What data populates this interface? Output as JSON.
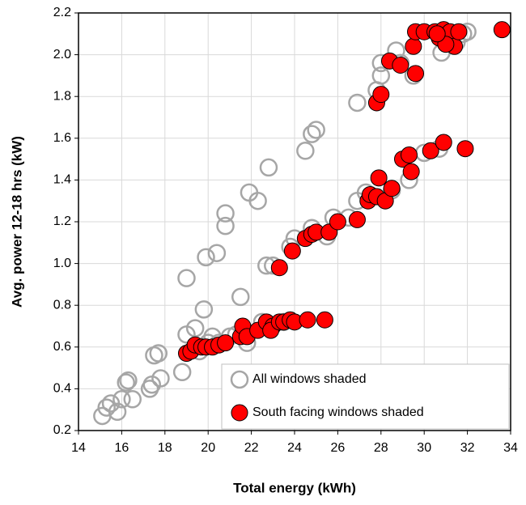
{
  "chart_data": {
    "type": "scatter",
    "xlabel": "Total energy (kWh)",
    "ylabel": "Avg. power  12-18 hrs (kW)",
    "xlim": [
      14,
      34
    ],
    "xticks": [
      14,
      16,
      18,
      20,
      22,
      24,
      26,
      28,
      30,
      32,
      34
    ],
    "ylim": [
      0.2,
      2.2
    ],
    "yticks": [
      0.2,
      0.4,
      0.6,
      0.8,
      {
        "value": 1,
        "label": "1.0"
      },
      1.2,
      1.4,
      1.6,
      1.8,
      {
        "value": 2,
        "label": "2.0"
      },
      2.2
    ],
    "grid": true,
    "legend": "lower right",
    "series": [
      {
        "name": "All windows shaded",
        "color": "#a6a6a6",
        "filled": false,
        "x": [
          15.1,
          15.3,
          15.5,
          15.8,
          16.0,
          16.2,
          16.3,
          16.5,
          17.3,
          17.4,
          17.5,
          17.7,
          17.8,
          18.8,
          19.0,
          19.0,
          19.4,
          19.6,
          19.8,
          19.9,
          20.0,
          20.2,
          20.4,
          20.8,
          20.8,
          20.5,
          21.0,
          21.3,
          21.5,
          21.8,
          21.9,
          22.3,
          22.5,
          22.8,
          22.7,
          23.0,
          23.5,
          23.8,
          24.0,
          24.5,
          24.8,
          25.0,
          24.8,
          25.5,
          25.8,
          26.5,
          26.9,
          26.9,
          27.3,
          27.8,
          28.0,
          28.0,
          28.5,
          28.7,
          28.9,
          29.3,
          29.5,
          30.0,
          30.8,
          31.5,
          31.8,
          32.0,
          30.7
        ],
        "values": [
          0.27,
          0.31,
          0.33,
          0.29,
          0.35,
          0.43,
          0.44,
          0.35,
          0.4,
          0.42,
          0.56,
          0.57,
          0.45,
          0.48,
          0.66,
          0.93,
          0.69,
          0.58,
          0.78,
          1.03,
          0.62,
          0.65,
          1.05,
          1.24,
          1.18,
          0.62,
          0.65,
          0.66,
          0.84,
          0.62,
          1.34,
          1.3,
          0.72,
          1.46,
          0.99,
          0.99,
          0.72,
          1.08,
          1.12,
          1.54,
          1.62,
          1.64,
          1.17,
          1.13,
          1.22,
          1.22,
          1.3,
          1.77,
          1.34,
          1.83,
          1.9,
          1.96,
          1.35,
          2.02,
          1.96,
          1.4,
          1.9,
          1.53,
          2.01,
          2.06,
          2.1,
          2.11,
          1.55
        ]
      },
      {
        "name": "South facing windows shaded",
        "color": "#ff0000",
        "filled": true,
        "x": [
          19.0,
          19.2,
          19.4,
          19.7,
          19.9,
          20.2,
          20.5,
          20.8,
          21.5,
          21.6,
          21.8,
          22.3,
          22.7,
          23.0,
          22.9,
          23.3,
          23.5,
          23.8,
          24.0,
          24.6,
          25.4,
          23.3,
          23.9,
          24.5,
          24.8,
          25.0,
          25.6,
          26.0,
          26.9,
          27.4,
          27.5,
          27.8,
          27.9,
          28.2,
          28.5,
          29.0,
          29.3,
          29.4,
          30.3,
          30.9,
          31.9,
          27.8,
          28.0,
          28.4,
          28.9,
          29.6,
          29.5,
          29.6,
          30.0,
          30.5,
          30.7,
          30.9,
          31.2,
          31.4,
          31.6,
          31.0,
          30.6,
          33.6
        ],
        "values": [
          0.57,
          0.58,
          0.61,
          0.6,
          0.6,
          0.6,
          0.61,
          0.62,
          0.65,
          0.7,
          0.65,
          0.68,
          0.72,
          0.7,
          0.68,
          0.72,
          0.72,
          0.73,
          0.72,
          0.73,
          0.73,
          0.98,
          1.06,
          1.12,
          1.14,
          1.15,
          1.15,
          1.2,
          1.21,
          1.3,
          1.33,
          1.32,
          1.41,
          1.3,
          1.36,
          1.5,
          1.52,
          1.44,
          1.54,
          1.58,
          1.55,
          1.77,
          1.81,
          1.97,
          1.95,
          1.91,
          2.04,
          2.11,
          2.11,
          2.11,
          2.08,
          2.12,
          2.11,
          2.04,
          2.11,
          2.05,
          2.1,
          2.12
        ]
      }
    ]
  }
}
